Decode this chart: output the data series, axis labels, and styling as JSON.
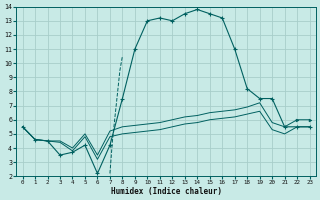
{
  "xlabel": "Humidex (Indice chaleur)",
  "bg_color": "#c8eae6",
  "grid_color": "#a8ceca",
  "line_color": "#006060",
  "xlim_min": -0.5,
  "xlim_max": 23.5,
  "ylim_min": 2.0,
  "ylim_max": 14.0,
  "xticks": [
    0,
    1,
    2,
    3,
    4,
    5,
    6,
    7,
    8,
    9,
    10,
    11,
    12,
    13,
    14,
    15,
    16,
    17,
    18,
    19,
    20,
    21,
    22,
    23
  ],
  "yticks": [
    2,
    3,
    4,
    5,
    6,
    7,
    8,
    9,
    10,
    11,
    12,
    13,
    14
  ],
  "series_main": [
    5.5,
    4.6,
    4.5,
    3.5,
    3.7,
    4.2,
    2.2,
    4.2,
    7.5,
    11.0,
    13.0,
    13.2,
    13.0,
    13.5,
    13.8,
    13.5,
    13.2,
    11.0,
    8.2,
    7.5,
    7.5,
    5.5,
    5.5,
    5.5
  ],
  "series_high": [
    5.5,
    4.6,
    4.5,
    4.5,
    4.0,
    5.0,
    3.5,
    5.2,
    5.5,
    5.6,
    5.7,
    5.8,
    6.0,
    6.2,
    6.3,
    6.5,
    6.6,
    6.7,
    6.9,
    7.2,
    5.8,
    5.5,
    6.0,
    6.0
  ],
  "series_low": [
    5.5,
    4.6,
    4.5,
    4.4,
    3.8,
    4.8,
    3.2,
    4.8,
    5.0,
    5.1,
    5.2,
    5.3,
    5.5,
    5.7,
    5.8,
    6.0,
    6.1,
    6.2,
    6.4,
    6.6,
    5.3,
    5.0,
    5.5,
    5.5
  ],
  "dashed_x": [
    7.0,
    7.2,
    7.5,
    7.8,
    8.0
  ],
  "dashed_y": [
    2.2,
    4.5,
    7.0,
    9.5,
    10.5
  ]
}
